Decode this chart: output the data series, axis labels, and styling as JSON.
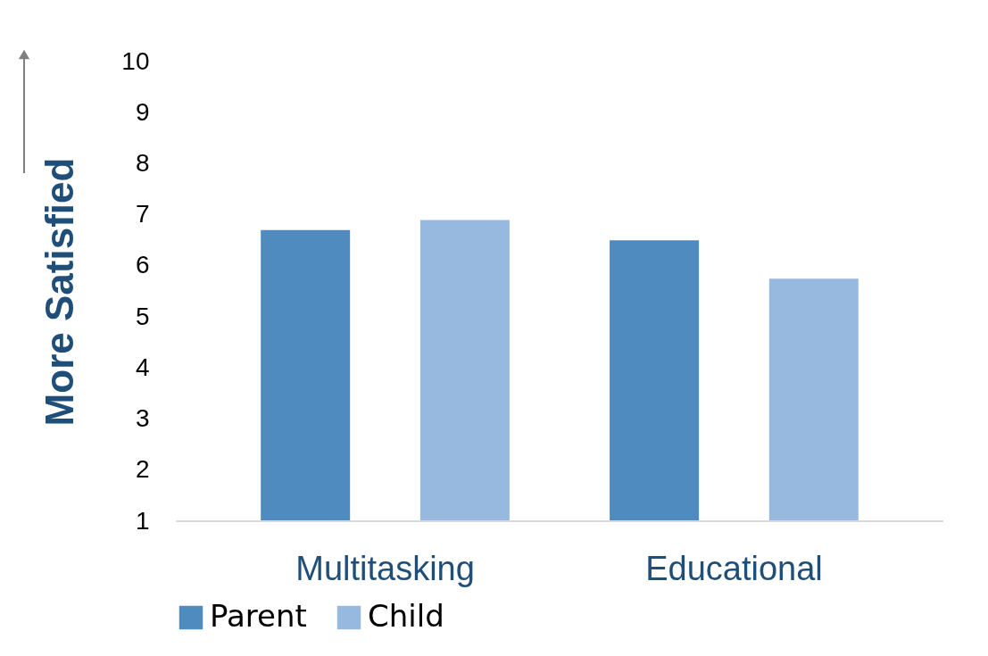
{
  "chart_data": {
    "type": "bar",
    "ylabel": "More Satisfied",
    "categories": [
      "Multitasking",
      "Educational"
    ],
    "series": [
      {
        "name": "Parent",
        "color": "#4f8bbf",
        "values": [
          6.7,
          6.5
        ]
      },
      {
        "name": "Child",
        "color": "#98b9df",
        "values": [
          6.9,
          5.75
        ]
      }
    ],
    "ylim": [
      1,
      10
    ],
    "yticks": [
      1,
      2,
      3,
      4,
      5,
      6,
      7,
      8,
      9,
      10
    ],
    "grid": false,
    "legend": "bottom"
  }
}
